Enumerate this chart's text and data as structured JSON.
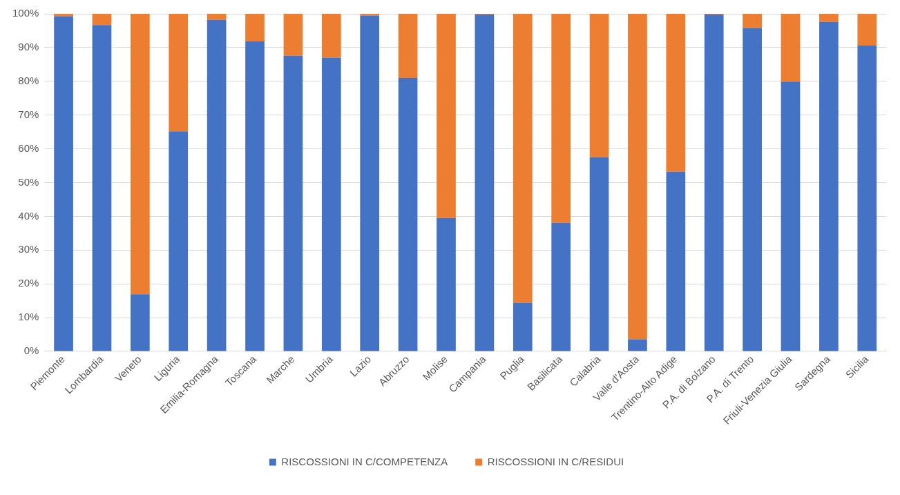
{
  "chart_data": {
    "type": "bar",
    "stacked": true,
    "categories": [
      "Piemonte",
      "Lombardia",
      "Veneto",
      "Liguria",
      "Emilia-Romagna",
      "Toscana",
      "Marche",
      "Umbria",
      "Lazio",
      "Abruzzo",
      "Molise",
      "Campania",
      "Puglia",
      "Basilicata",
      "Calabria",
      "Valle d'Aosta",
      "Trentino-Alto Adige",
      "P.A. di Bolzano",
      "P.A. di Trento",
      "Friuli-Venezia Giulia",
      "Sardegna",
      "Sicilia"
    ],
    "series": [
      {
        "name": "RISCOSSIONI IN C/COMPETENZA",
        "color": "#4472c4",
        "values": [
          99.3,
          96.7,
          16.9,
          65.2,
          98.2,
          91.8,
          87.6,
          87,
          99.5,
          81,
          39.5,
          99.8,
          14.4,
          38.1,
          57.5,
          3.6,
          53.2,
          99.8,
          95.8,
          79.9,
          97.6,
          90.6
        ]
      },
      {
        "name": "RISCOSSIONI IN C/RESIDUI",
        "color": "#ed7d31",
        "values": [
          0.7,
          3.3,
          83.1,
          34.8,
          1.8,
          8.2,
          12.4,
          13,
          0.5,
          19,
          60.5,
          0.2,
          85.6,
          61.9,
          42.5,
          96.4,
          46.8,
          0.2,
          4.2,
          20.1,
          2.4,
          9.4
        ]
      }
    ],
    "ylim": [
      0,
      100
    ],
    "yticks": [
      {
        "value": 0,
        "label": "0%"
      },
      {
        "value": 10,
        "label": "10%"
      },
      {
        "value": 20,
        "label": "20%"
      },
      {
        "value": 30,
        "label": "30%"
      },
      {
        "value": 40,
        "label": "40%"
      },
      {
        "value": 50,
        "label": "50%"
      },
      {
        "value": 60,
        "label": "60%"
      },
      {
        "value": 70,
        "label": "70%"
      },
      {
        "value": 80,
        "label": "80%"
      },
      {
        "value": 90,
        "label": "90%"
      },
      {
        "value": 100,
        "label": "100%"
      }
    ],
    "grid": "y",
    "legend": "bottom"
  }
}
